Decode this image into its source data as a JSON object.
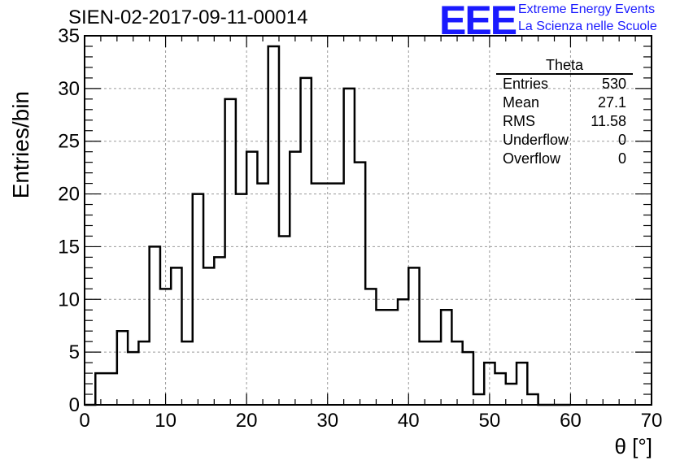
{
  "page": {
    "title": "SIEN-02-2017-09-11-00014",
    "logo_text": "EEE",
    "logo_line1": "Extreme Energy Events",
    "logo_line2": "La Scienza nelle Scuole",
    "accent_color": "#1a1aff"
  },
  "stats": {
    "title": "Theta",
    "rows": [
      {
        "label": "Entries",
        "value": "530"
      },
      {
        "label": "Mean",
        "value": "27.1"
      },
      {
        "label": "RMS",
        "value": "11.58"
      },
      {
        "label": "Underflow",
        "value": "0"
      },
      {
        "label": "Overflow",
        "value": "0"
      }
    ]
  },
  "chart_data": {
    "type": "bar",
    "style": "step-histogram",
    "title": "SIEN-02-2017-09-11-00014",
    "xlabel": "θ [°]",
    "ylabel": "Entries/bin",
    "xlim": [
      0,
      70
    ],
    "ylim": [
      0,
      35
    ],
    "grid": true,
    "x_ticks": [
      "0",
      "10",
      "20",
      "30",
      "40",
      "50",
      "60",
      "70"
    ],
    "y_ticks": [
      "0",
      "5",
      "10",
      "15",
      "20",
      "25",
      "30",
      "35"
    ],
    "bin_edges": [
      0,
      1.3333,
      2.6667,
      4,
      5.3333,
      6.6667,
      8,
      9.3333,
      10.6667,
      12,
      13.3333,
      14.6667,
      16,
      17.3333,
      18.6667,
      20,
      21.3333,
      22.6667,
      24,
      25.3333,
      26.6667,
      28,
      29.3333,
      30.6667,
      32,
      33.3333,
      34.6667,
      36,
      37.3333,
      38.6667,
      40,
      41.3333,
      42.6667,
      44,
      45.3333,
      46.6667,
      48,
      49.3333,
      50.6667,
      52,
      53.3333,
      54.6667,
      56,
      57.3333,
      58.6667,
      60
    ],
    "values": [
      0,
      3,
      3,
      7,
      5,
      6,
      15,
      11,
      13,
      6,
      20,
      13,
      14,
      29,
      20,
      24,
      21,
      34,
      16,
      24,
      31,
      21,
      21,
      21,
      30,
      23,
      11,
      9,
      9,
      10,
      13,
      6,
      6,
      9,
      6,
      5,
      1,
      4,
      3,
      2,
      4,
      1,
      0,
      0,
      0
    ]
  }
}
